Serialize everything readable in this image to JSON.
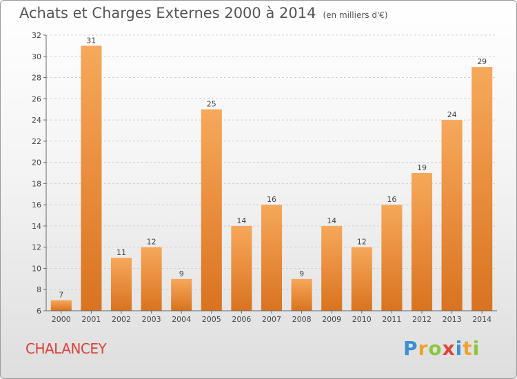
{
  "header": {
    "title": "Achats et Charges Externes 2000 à 2014",
    "unit": "(en milliers d'€)"
  },
  "location": "CHALANCEY",
  "logo": {
    "letters": [
      {
        "ch": "P",
        "color": "#3c8fd1"
      },
      {
        "ch": "r",
        "color": "#f0a22b"
      },
      {
        "ch": "o",
        "color": "#8cc63f"
      },
      {
        "ch": "x",
        "color": "#e0443a"
      },
      {
        "ch": "i",
        "color": "#3c8fd1"
      },
      {
        "ch": "t",
        "color": "#f0a22b"
      },
      {
        "ch": "i",
        "color": "#8cc63f"
      }
    ]
  },
  "chart_data": {
    "type": "bar",
    "title": "Achats et Charges Externes 2000 à 2014",
    "subtitle": "(en milliers d'€)",
    "categories": [
      "2000",
      "2001",
      "2002",
      "2003",
      "2004",
      "2005",
      "2006",
      "2007",
      "2008",
      "2009",
      "2010",
      "2011",
      "2012",
      "2013",
      "2014"
    ],
    "values": [
      7,
      31,
      11,
      12,
      9,
      25,
      14,
      16,
      9,
      14,
      12,
      16,
      19,
      24,
      29
    ],
    "ylim": [
      6,
      32
    ],
    "yticks": [
      6,
      8,
      10,
      12,
      14,
      16,
      18,
      20,
      22,
      24,
      26,
      28,
      30,
      32
    ],
    "grid": true,
    "colors": {
      "bar_light": "#f7a85b",
      "bar_dark": "#d9731f",
      "axis": "#666666",
      "text": "#444444"
    }
  }
}
